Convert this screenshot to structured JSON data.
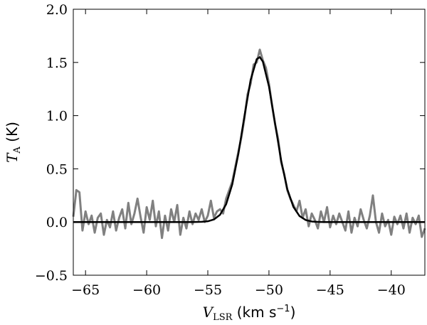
{
  "chart_data": {
    "type": "line",
    "xlabel": {
      "main": "V",
      "sub": "LSR",
      "rest": " (km s",
      "sup": "−1",
      "end": ")"
    },
    "ylabel": {
      "main": "T",
      "sub": "A",
      "rest": " (K)"
    },
    "xlim": [
      -66,
      -37.25
    ],
    "ylim": [
      -0.5,
      2.0
    ],
    "xticks": [
      {
        "value": -65,
        "label": "−65"
      },
      {
        "value": -60,
        "label": "−60"
      },
      {
        "value": -55,
        "label": "−55"
      },
      {
        "value": -50,
        "label": "−50"
      },
      {
        "value": -45,
        "label": "−45"
      },
      {
        "value": -40,
        "label": "−40"
      }
    ],
    "yticks": [
      {
        "value": -0.5,
        "label": "−0.5"
      },
      {
        "value": 0,
        "label": "0.0"
      },
      {
        "value": 0.5,
        "label": "0.5"
      },
      {
        "value": 1.0,
        "label": "1.0"
      },
      {
        "value": 1.5,
        "label": "1.5"
      },
      {
        "value": 2.0,
        "label": "2.0"
      }
    ],
    "grid": false,
    "series": [
      {
        "color": "#808080",
        "x": [
          -66,
          -65.75,
          -65.5,
          -65.25,
          -65,
          -64.75,
          -64.5,
          -64.25,
          -64,
          -63.75,
          -63.5,
          -63.25,
          -63,
          -62.75,
          -62.5,
          -62.25,
          -62,
          -61.75,
          -61.5,
          -61.25,
          -61,
          -60.75,
          -60.5,
          -60.25,
          -60,
          -59.75,
          -59.5,
          -59.25,
          -59,
          -58.75,
          -58.5,
          -58.25,
          -58,
          -57.75,
          -57.5,
          -57.25,
          -57,
          -56.75,
          -56.5,
          -56.25,
          -56,
          -55.75,
          -55.5,
          -55.25,
          -55,
          -54.75,
          -54.5,
          -54.25,
          -54,
          -53.75,
          -53.5,
          -53.25,
          -53,
          -52.75,
          -52.5,
          -52.25,
          -52,
          -51.75,
          -51.5,
          -51.25,
          -51,
          -50.75,
          -50.5,
          -50.25,
          -50,
          -49.75,
          -49.5,
          -49.25,
          -49,
          -48.75,
          -48.5,
          -48.25,
          -48,
          -47.75,
          -47.5,
          -47.25,
          -47,
          -46.75,
          -46.5,
          -46.25,
          -46,
          -45.75,
          -45.5,
          -45.25,
          -45,
          -44.75,
          -44.5,
          -44.25,
          -44,
          -43.75,
          -43.5,
          -43.25,
          -43,
          -42.75,
          -42.5,
          -42.25,
          -42,
          -41.75,
          -41.5,
          -41.25,
          -41,
          -40.75,
          -40.5,
          -40.25,
          -40,
          -39.75,
          -39.5,
          -39.25,
          -39,
          -38.75,
          -38.5,
          -38.25,
          -38,
          -37.75,
          -37.5,
          -37.25
        ],
        "values": [
          0.05,
          0.3,
          0.28,
          -0.08,
          0.1,
          -0.02,
          0.06,
          -0.1,
          0.04,
          0.08,
          -0.12,
          0.02,
          -0.05,
          0.1,
          -0.08,
          0.04,
          0.12,
          -0.06,
          0.18,
          -0.02,
          0.08,
          0.22,
          0.05,
          -0.1,
          0.14,
          0.02,
          0.2,
          -0.04,
          0.1,
          -0.15,
          0.06,
          -0.08,
          0.12,
          0.0,
          0.16,
          -0.12,
          0.04,
          -0.06,
          0.1,
          -0.02,
          0.08,
          0.02,
          0.12,
          0.0,
          0.06,
          0.2,
          0.04,
          0.1,
          0.12,
          0.08,
          0.22,
          0.3,
          0.38,
          0.52,
          0.66,
          0.8,
          0.98,
          1.2,
          1.3,
          1.48,
          1.5,
          1.62,
          1.52,
          1.45,
          1.3,
          1.1,
          0.92,
          0.78,
          0.56,
          0.45,
          0.3,
          0.22,
          0.16,
          0.1,
          0.2,
          0.04,
          0.12,
          -0.04,
          0.08,
          0.02,
          -0.06,
          0.1,
          0.0,
          0.14,
          -0.05,
          0.06,
          -0.02,
          0.08,
          0.0,
          -0.08,
          0.1,
          -0.1,
          0.04,
          -0.04,
          0.12,
          0.02,
          -0.06,
          0.06,
          0.25,
          0.0,
          -0.1,
          0.08,
          -0.04,
          0.02,
          -0.12,
          0.05,
          -0.02,
          0.06,
          -0.06,
          0.08,
          -0.1,
          0.04,
          -0.02,
          0.06,
          -0.14,
          -0.06
        ]
      },
      {
        "color": "#000000",
        "x": [
          -66,
          -56.5,
          -56,
          -55.5,
          -55,
          -54.5,
          -54,
          -53.5,
          -53,
          -52.5,
          -52,
          -51.5,
          -51,
          -50.75,
          -50.5,
          -50,
          -49.5,
          -49,
          -48.5,
          -48,
          -47.5,
          -47,
          -46.5,
          -46,
          -45.5,
          -37.25
        ],
        "values": [
          0,
          0,
          0.0004,
          0.002,
          0.007,
          0.024,
          0.068,
          0.168,
          0.354,
          0.642,
          0.999,
          1.335,
          1.531,
          1.55,
          1.508,
          1.275,
          0.926,
          0.577,
          0.309,
          0.142,
          0.056,
          0.019,
          0.005,
          0.001,
          0,
          0
        ]
      }
    ]
  }
}
